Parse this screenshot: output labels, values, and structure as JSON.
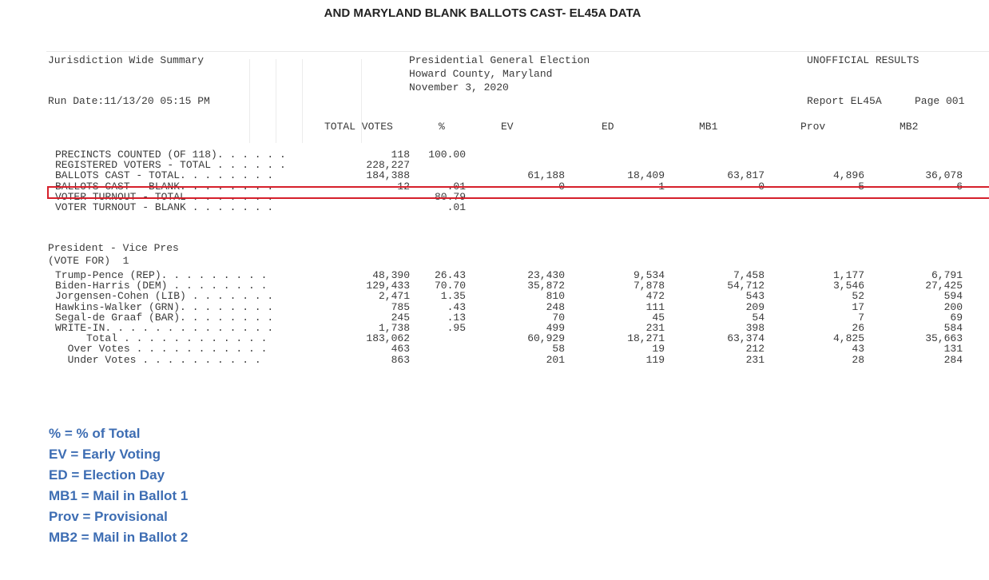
{
  "heading": "AND MARYLAND BLANK BALLOTS CAST- EL45A DATA",
  "report": {
    "summary_title": "Jurisdiction Wide Summary",
    "election": [
      "Presidential General Election",
      "Howard County, Maryland",
      "November 3, 2020"
    ],
    "status": "UNOFFICIAL RESULTS",
    "run_date": "Run Date:11/13/20 05:15 PM",
    "report_id": "Report EL45A",
    "page": "Page 001"
  },
  "columns": [
    "TOTAL VOTES",
    "%",
    "EV",
    "ED",
    "MB1",
    "Prov",
    "MB2"
  ],
  "stats_rows": [
    {
      "label": "PRECINCTS COUNTED (OF 118).",
      "dots": ". . . . .",
      "total": "118",
      "pct": "100.00",
      "ev": "",
      "ed": "",
      "mb1": "",
      "prov": "",
      "mb2": ""
    },
    {
      "label": "REGISTERED VOTERS - TOTAL .",
      "dots": ". . . . .",
      "total": "228,227",
      "pct": "",
      "ev": "",
      "ed": "",
      "mb1": "",
      "prov": "",
      "mb2": ""
    },
    {
      "label": "BALLOTS CAST - TOTAL.",
      "dots": ". . . . . . .",
      "total": "184,388",
      "pct": "",
      "ev": "61,188",
      "ed": "18,409",
      "mb1": "63,817",
      "prov": "4,896",
      "mb2": "36,078"
    },
    {
      "label": "BALLOTS CAST - BLANK.",
      "dots": ". . . . . . .",
      "total": "12",
      "pct": ".01",
      "ev": "0",
      "ed": "1",
      "mb1": "0",
      "prov": "5",
      "mb2": "6"
    },
    {
      "label": "VOTER TURNOUT - TOTAL",
      "dots": ". . . . . . .",
      "total": "",
      "pct": "80.79",
      "ev": "",
      "ed": "",
      "mb1": "",
      "prov": "",
      "mb2": ""
    },
    {
      "label": "VOTER TURNOUT - BLANK",
      "dots": ". . . . . . .",
      "total": "",
      "pct": ".01",
      "ev": "",
      "ed": "",
      "mb1": "",
      "prov": "",
      "mb2": ""
    }
  ],
  "contest": {
    "title": "President - Vice Pres",
    "vote_for": "(VOTE FOR)  1"
  },
  "candidate_rows": [
    {
      "label": "Trump-Pence (REP).",
      "dots": ". . . . . . . .",
      "total": "48,390",
      "pct": "26.43",
      "ev": "23,430",
      "ed": "9,534",
      "mb1": "7,458",
      "prov": "1,177",
      "mb2": "6,791"
    },
    {
      "label": "Biden-Harris (DEM)",
      "dots": ". . . . . . . .",
      "total": "129,433",
      "pct": "70.70",
      "ev": "35,872",
      "ed": "7,878",
      "mb1": "54,712",
      "prov": "3,546",
      "mb2": "27,425"
    },
    {
      "label": "Jorgensen-Cohen (LIB)",
      "dots": ". . . . . . .",
      "total": "2,471",
      "pct": "1.35",
      "ev": "810",
      "ed": "472",
      "mb1": "543",
      "prov": "52",
      "mb2": "594"
    },
    {
      "label": "Hawkins-Walker (GRN).",
      "dots": ". . . . . . .",
      "total": "785",
      "pct": ".43",
      "ev": "248",
      "ed": "111",
      "mb1": "209",
      "prov": "17",
      "mb2": "200"
    },
    {
      "label": "Segal-de Graaf (BAR).",
      "dots": ". . . . . . .",
      "total": "245",
      "pct": ".13",
      "ev": "70",
      "ed": "45",
      "mb1": "54",
      "prov": "7",
      "mb2": "69"
    },
    {
      "label": "WRITE-IN.",
      "dots": ". . . . . . . . . . . . .",
      "total": "1,738",
      "pct": ".95",
      "ev": "499",
      "ed": "231",
      "mb1": "398",
      "prov": "26",
      "mb2": "584"
    },
    {
      "label": "     Total",
      "dots": ". . . . . . . . . . . .",
      "total": "183,062",
      "pct": "",
      "ev": "60,929",
      "ed": "18,271",
      "mb1": "63,374",
      "prov": "4,825",
      "mb2": "35,663"
    },
    {
      "label": "  Over Votes",
      "dots": ". . . . . . . . . . .",
      "total": "463",
      "pct": "",
      "ev": "58",
      "ed": "19",
      "mb1": "212",
      "prov": "43",
      "mb2": "131"
    },
    {
      "label": "  Under Votes",
      "dots": ". . . . . . . . . .",
      "total": "863",
      "pct": "",
      "ev": "201",
      "ed": "119",
      "mb1": "231",
      "prov": "28",
      "mb2": "284"
    }
  ],
  "legend": [
    "% = % of Total",
    "EV = Early Voting",
    "ED = Election Day",
    "MB1 = Mail in Ballot 1",
    "Prov = Provisional",
    "MB2 = Mail in Ballot 2"
  ],
  "colors": {
    "highlight": "#d6202b",
    "legend": "#3d6db3"
  }
}
